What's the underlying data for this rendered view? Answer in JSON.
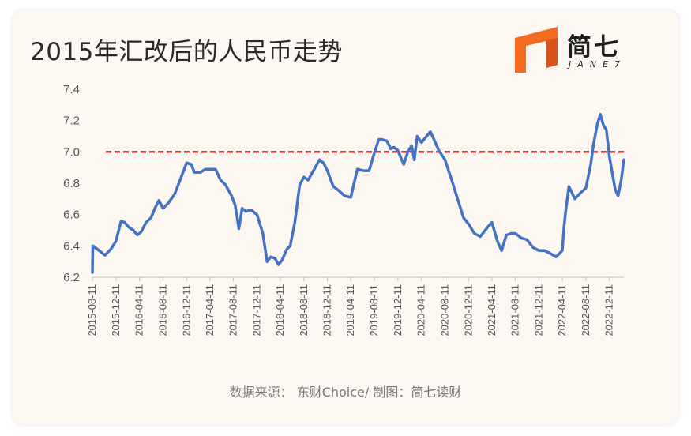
{
  "title": "2015年汇改后的人民币走势",
  "logo": {
    "name": "简七",
    "sub": "JANE7",
    "accent": "#f26b21"
  },
  "source": "数据来源： 东财Choice/ 制图：简七读财",
  "colors": {
    "line": "#4472c4",
    "refline": "#c00000"
  },
  "chart_data": {
    "type": "line",
    "title": "2015年汇改后的人民币走势",
    "xlabel": "",
    "ylabel": "",
    "ylim": [
      6.2,
      7.4
    ],
    "yticks": [
      "6.2",
      "6.4",
      "6.6",
      "6.8",
      "7.0",
      "7.2",
      "7.4"
    ],
    "xticks": [
      "2015-08-11",
      "2015-12-11",
      "2016-04-11",
      "2016-08-11",
      "2016-12-11",
      "2017-04-11",
      "2017-08-11",
      "2017-12-11",
      "2018-04-11",
      "2018-08-11",
      "2018-12-11",
      "2019-04-11",
      "2019-08-11",
      "2019-12-11",
      "2020-04-11",
      "2020-08-11",
      "2020-12-11",
      "2021-04-11",
      "2021-08-11",
      "2021-12-11",
      "2022-04-11",
      "2022-08-11",
      "2022-12-11"
    ],
    "reference_line": {
      "y": 7.0,
      "style": "dashed"
    },
    "grid": false,
    "series": [
      {
        "name": "",
        "points": [
          [
            "2015-08-11",
            6.23
          ],
          [
            "2015-08-13",
            6.4
          ],
          [
            "2015-09-15",
            6.37
          ],
          [
            "2015-10-15",
            6.34
          ],
          [
            "2015-11-15",
            6.38
          ],
          [
            "2015-12-11",
            6.43
          ],
          [
            "2016-01-07",
            6.56
          ],
          [
            "2016-01-25",
            6.55
          ],
          [
            "2016-02-15",
            6.52
          ],
          [
            "2016-03-10",
            6.5
          ],
          [
            "2016-03-31",
            6.47
          ],
          [
            "2016-04-20",
            6.49
          ],
          [
            "2016-05-15",
            6.55
          ],
          [
            "2016-06-10",
            6.58
          ],
          [
            "2016-06-30",
            6.64
          ],
          [
            "2016-07-20",
            6.69
          ],
          [
            "2016-08-11",
            6.64
          ],
          [
            "2016-09-05",
            6.67
          ],
          [
            "2016-10-10",
            6.73
          ],
          [
            "2016-11-10",
            6.83
          ],
          [
            "2016-12-11",
            6.93
          ],
          [
            "2017-01-05",
            6.92
          ],
          [
            "2017-01-20",
            6.87
          ],
          [
            "2017-02-20",
            6.87
          ],
          [
            "2017-03-20",
            6.89
          ],
          [
            "2017-04-15",
            6.89
          ],
          [
            "2017-05-10",
            6.89
          ],
          [
            "2017-06-05",
            6.82
          ],
          [
            "2017-07-01",
            6.79
          ],
          [
            "2017-08-01",
            6.72
          ],
          [
            "2017-08-20",
            6.66
          ],
          [
            "2017-09-08",
            6.51
          ],
          [
            "2017-09-25",
            6.64
          ],
          [
            "2017-10-15",
            6.62
          ],
          [
            "2017-11-10",
            6.63
          ],
          [
            "2017-12-11",
            6.6
          ],
          [
            "2018-01-10",
            6.48
          ],
          [
            "2018-02-01",
            6.3
          ],
          [
            "2018-02-20",
            6.33
          ],
          [
            "2018-03-15",
            6.32
          ],
          [
            "2018-04-01",
            6.28
          ],
          [
            "2018-04-20",
            6.31
          ],
          [
            "2018-05-15",
            6.38
          ],
          [
            "2018-06-01",
            6.4
          ],
          [
            "2018-06-25",
            6.55
          ],
          [
            "2018-07-20",
            6.79
          ],
          [
            "2018-08-11",
            6.84
          ],
          [
            "2018-09-01",
            6.82
          ],
          [
            "2018-09-25",
            6.87
          ],
          [
            "2018-10-31",
            6.95
          ],
          [
            "2018-11-20",
            6.93
          ],
          [
            "2018-12-11",
            6.88
          ],
          [
            "2019-01-10",
            6.78
          ],
          [
            "2019-02-10",
            6.75
          ],
          [
            "2019-03-10",
            6.72
          ],
          [
            "2019-04-11",
            6.71
          ],
          [
            "2019-05-15",
            6.89
          ],
          [
            "2019-06-15",
            6.88
          ],
          [
            "2019-07-15",
            6.88
          ],
          [
            "2019-08-05",
            6.97
          ],
          [
            "2019-09-03",
            7.08
          ],
          [
            "2019-09-20",
            7.08
          ],
          [
            "2019-10-15",
            7.07
          ],
          [
            "2019-11-05",
            7.02
          ],
          [
            "2019-11-20",
            7.03
          ],
          [
            "2019-12-11",
            7.01
          ],
          [
            "2020-01-10",
            6.92
          ],
          [
            "2020-02-01",
            7.0
          ],
          [
            "2020-02-20",
            7.04
          ],
          [
            "2020-03-05",
            6.95
          ],
          [
            "2020-03-20",
            7.1
          ],
          [
            "2020-04-11",
            7.06
          ],
          [
            "2020-05-27",
            7.13
          ],
          [
            "2020-06-15",
            7.08
          ],
          [
            "2020-07-10",
            7.01
          ],
          [
            "2020-08-11",
            6.95
          ],
          [
            "2020-09-15",
            6.82
          ],
          [
            "2020-10-15",
            6.7
          ],
          [
            "2020-11-15",
            6.58
          ],
          [
            "2020-12-11",
            6.54
          ],
          [
            "2021-01-10",
            6.48
          ],
          [
            "2021-02-10",
            6.46
          ],
          [
            "2021-03-20",
            6.52
          ],
          [
            "2021-04-11",
            6.55
          ],
          [
            "2021-05-10",
            6.43
          ],
          [
            "2021-05-31",
            6.37
          ],
          [
            "2021-06-25",
            6.47
          ],
          [
            "2021-07-20",
            6.48
          ],
          [
            "2021-08-11",
            6.48
          ],
          [
            "2021-09-10",
            6.45
          ],
          [
            "2021-10-10",
            6.44
          ],
          [
            "2021-11-10",
            6.39
          ],
          [
            "2021-12-11",
            6.37
          ],
          [
            "2022-01-10",
            6.37
          ],
          [
            "2022-02-10",
            6.35
          ],
          [
            "2022-03-10",
            6.33
          ],
          [
            "2022-04-11",
            6.37
          ],
          [
            "2022-04-20",
            6.52
          ],
          [
            "2022-04-27",
            6.61
          ],
          [
            "2022-05-15",
            6.78
          ],
          [
            "2022-06-15",
            6.7
          ],
          [
            "2022-07-15",
            6.74
          ],
          [
            "2022-08-11",
            6.77
          ],
          [
            "2022-09-05",
            6.92
          ],
          [
            "2022-09-20",
            7.05
          ],
          [
            "2022-10-10",
            7.18
          ],
          [
            "2022-10-25",
            7.24
          ],
          [
            "2022-11-10",
            7.17
          ],
          [
            "2022-11-25",
            7.14
          ],
          [
            "2022-12-11",
            6.97
          ],
          [
            "2023-01-10",
            6.76
          ],
          [
            "2023-01-25",
            6.72
          ],
          [
            "2023-02-10",
            6.82
          ],
          [
            "2023-02-24",
            6.95
          ]
        ]
      }
    ]
  }
}
